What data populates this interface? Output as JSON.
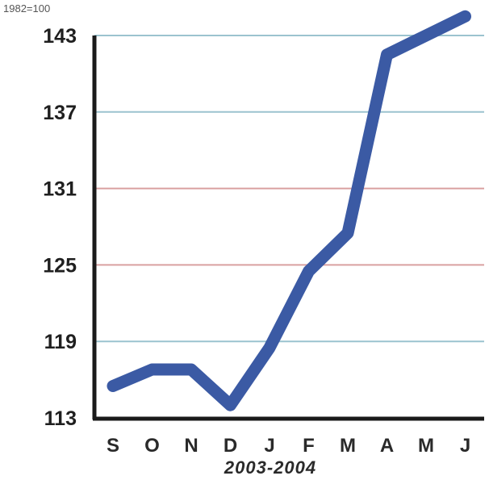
{
  "chart_data": {
    "type": "line",
    "unit_label": "1982=100",
    "xlabel": "2003-2004",
    "categories": [
      "S",
      "O",
      "N",
      "D",
      "J",
      "F",
      "M",
      "A",
      "M",
      "J"
    ],
    "series": [
      {
        "values": [
          115.5,
          116.8,
          116.8,
          114.0,
          118.5,
          124.5,
          127.5,
          141.5,
          143.0,
          144.5
        ]
      }
    ],
    "ylim": [
      113,
      143
    ],
    "yticks": [
      113,
      119,
      125,
      131,
      137,
      143
    ],
    "grid": true,
    "colors": {
      "line": "#3b5aa4",
      "gridline_top": "#9bc3cf",
      "gridline_red": "#d9a0a0",
      "axis": "#1a1a1a"
    }
  }
}
